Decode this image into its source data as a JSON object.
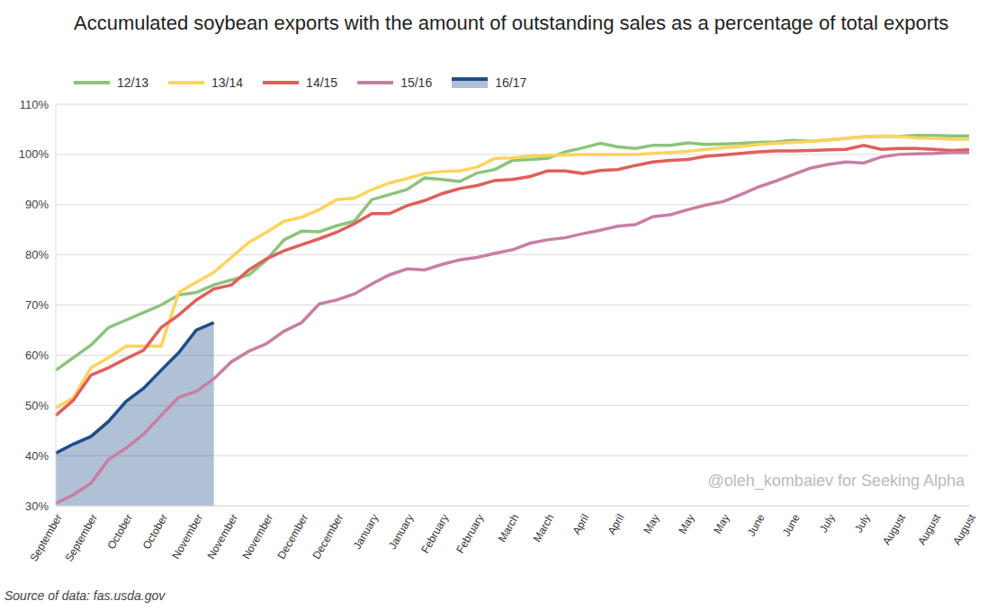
{
  "chart_data": {
    "type": "line",
    "title": "Accumulated soybean exports with the amount of outstanding sales as a percentage of total exports",
    "annotations": [
      "@oleh_kombaiev for Seeking Alpha"
    ],
    "source": "Source of data: fas.usda.gov",
    "categories": [
      "September",
      null,
      "September",
      null,
      "October",
      null,
      "October",
      null,
      "November",
      null,
      "November",
      null,
      "November",
      null,
      "December",
      null,
      "December",
      null,
      "January",
      null,
      "January",
      null,
      "February",
      null,
      "February",
      null,
      "March",
      null,
      "March",
      null,
      "April",
      null,
      "April",
      null,
      "May",
      null,
      "May",
      null,
      "May",
      null,
      "June",
      null,
      "June",
      null,
      "July",
      null,
      "July",
      null,
      "August",
      null,
      "August",
      null,
      "August"
    ],
    "series": [
      {
        "name": "12/13",
        "color": "#8cc47a",
        "values": [
          57,
          59.5,
          62,
          65.5,
          67,
          68.5,
          70,
          72,
          72.5,
          74,
          75,
          76,
          79,
          83,
          84.7,
          84.6,
          85.8,
          86.7,
          91,
          92,
          93,
          95.3,
          95,
          94.6,
          96.3,
          97,
          98.8,
          99,
          99.2,
          100.5,
          101.3,
          102.2,
          101.5,
          101.2,
          101.8,
          101.8,
          102.3,
          102,
          102.1,
          102.2,
          102.4,
          102.5,
          102.8,
          102.6,
          102.9,
          103.2,
          103.5,
          103.6,
          103.6,
          103.8,
          103.8,
          103.7,
          103.7
        ]
      },
      {
        "name": "13/14",
        "color": "#ffd35c",
        "values": [
          49.5,
          51.5,
          57.5,
          59.5,
          61.8,
          61.8,
          61.8,
          72.5,
          74.5,
          76.5,
          79.5,
          82.5,
          84.5,
          86.7,
          87.5,
          89,
          91,
          91.3,
          93,
          94.3,
          95.2,
          96.2,
          96.6,
          96.7,
          97.5,
          99.2,
          99.3,
          99.7,
          99.8,
          99.9,
          100,
          100,
          100,
          100,
          100.2,
          100.4,
          100.6,
          101,
          101.3,
          101.6,
          102,
          102.2,
          102.4,
          102.6,
          102.9,
          103.2,
          103.5,
          103.7,
          103.6,
          103.3,
          103.2,
          103,
          103
        ]
      },
      {
        "name": "14/15",
        "color": "#e05f5b",
        "values": [
          48,
          51,
          56,
          57.5,
          59.3,
          61,
          65.5,
          68,
          71,
          73.2,
          74,
          77,
          79.2,
          80.8,
          82,
          83.2,
          84.5,
          86.2,
          88.2,
          88.2,
          89.8,
          90.8,
          92.2,
          93.2,
          93.8,
          94.8,
          95,
          95.6,
          96.7,
          96.7,
          96.2,
          96.8,
          97,
          97.8,
          98.5,
          98.8,
          99,
          99.6,
          99.9,
          100.2,
          100.5,
          100.7,
          100.7,
          100.8,
          100.9,
          101,
          101.8,
          101,
          101.2,
          101.2,
          101,
          100.8,
          100.9
        ]
      },
      {
        "name": "15/16",
        "color": "#c97ea3",
        "values": [
          30.5,
          32.2,
          34.5,
          39.2,
          41.5,
          44.3,
          48,
          51.6,
          52.8,
          55.3,
          58.7,
          60.8,
          62.3,
          64.8,
          66.5,
          70.2,
          71,
          72.2,
          74.2,
          76,
          77.2,
          77,
          78.1,
          79,
          79.5,
          80.3,
          81,
          82.3,
          83,
          83.4,
          84.2,
          84.9,
          85.7,
          86,
          87.6,
          88,
          89,
          89.9,
          90.6,
          92,
          93.5,
          94.7,
          96,
          97.3,
          98,
          98.5,
          98.3,
          99.5,
          100,
          100.1,
          100.2,
          100.4,
          100.4
        ]
      },
      {
        "name": "16/17",
        "color": "#1d4e89",
        "type": "area",
        "values": [
          40.5,
          42.3,
          43.8,
          46.8,
          50.8,
          53.4,
          57,
          60.5,
          65,
          66.5,
          null,
          null,
          null,
          null,
          null,
          null,
          null,
          null,
          null,
          null,
          null,
          null,
          null,
          null,
          null,
          null,
          null,
          null,
          null,
          null,
          null,
          null,
          null,
          null,
          null,
          null,
          null,
          null,
          null,
          null,
          null,
          null,
          null,
          null,
          null,
          null,
          null,
          null,
          null,
          null,
          null,
          null,
          null
        ]
      }
    ],
    "ylim": [
      30,
      110
    ],
    "yticks": [
      {
        "value": 30,
        "label": "30%"
      },
      {
        "value": 40,
        "label": "40%"
      },
      {
        "value": 50,
        "label": "50%"
      },
      {
        "value": 60,
        "label": "60%"
      },
      {
        "value": 70,
        "label": "70%"
      },
      {
        "value": 80,
        "label": "80%"
      },
      {
        "value": 90,
        "label": "90%"
      },
      {
        "value": 100,
        "label": "100%"
      },
      {
        "value": 110,
        "label": "110%"
      }
    ],
    "grid": true,
    "legend": "top-left"
  }
}
